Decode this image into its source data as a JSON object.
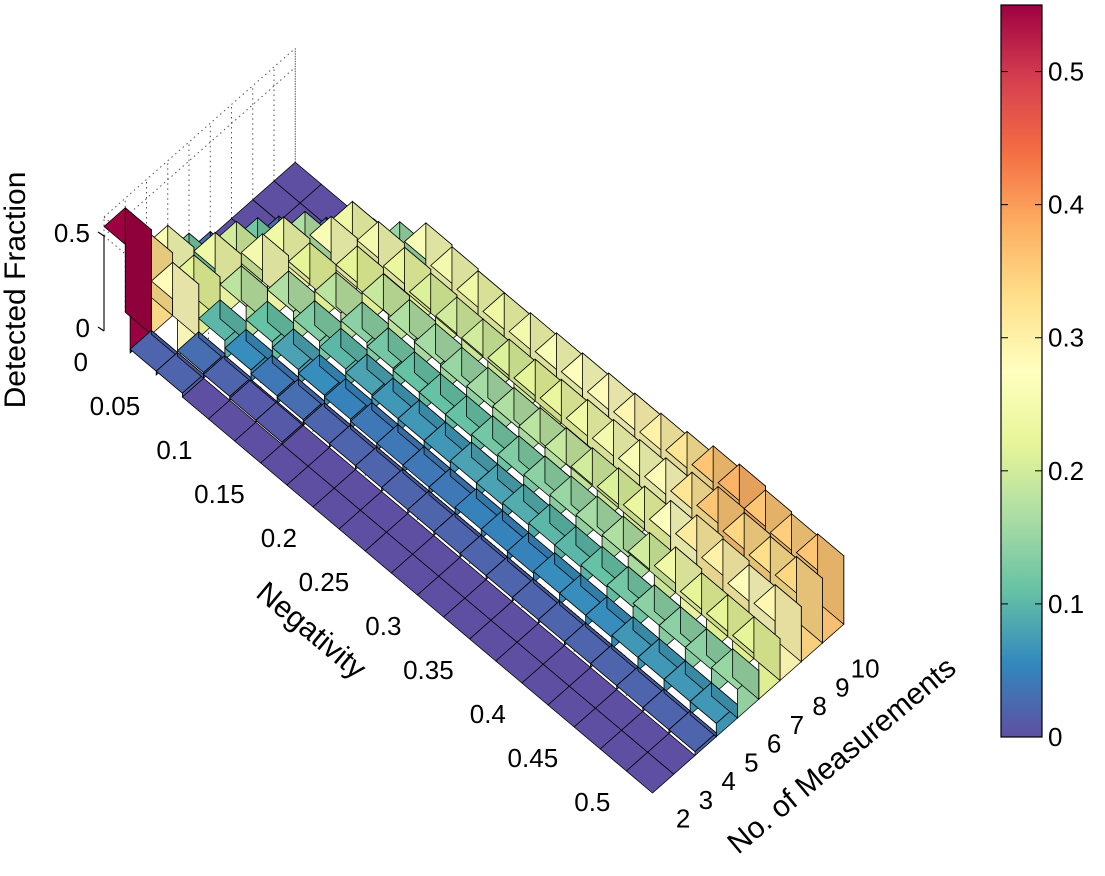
{
  "chart_data": {
    "type": "bar3d",
    "title": "",
    "xlabel": "No. of Measurements",
    "ylabel": "Negativity",
    "zlabel": "Detected Fraction",
    "x_ticks": [
      "2",
      "3",
      "4",
      "5",
      "6",
      "7",
      "8",
      "9",
      "10"
    ],
    "y_ticks": [
      "0",
      "0.05",
      "0.1",
      "0.15",
      "0.2",
      "0.25",
      "0.3",
      "0.35",
      "0.4",
      "0.45",
      "0.5"
    ],
    "z_ticks": [
      "0",
      "0.5"
    ],
    "zlim": [
      0,
      0.6
    ],
    "colormap": "spectral",
    "colorbar": {
      "ticks": [
        "0",
        "0.1",
        "0.2",
        "0.3",
        "0.4",
        "0.5"
      ],
      "range": [
        0,
        0.55
      ],
      "position": "right"
    },
    "grid": true,
    "x": [
      2,
      3,
      4,
      5,
      6,
      7,
      8,
      9,
      10
    ],
    "y": [
      0,
      0.025,
      0.05,
      0.075,
      0.1,
      0.125,
      0.15,
      0.175,
      0.2,
      0.225,
      0.25,
      0.275,
      0.3,
      0.325,
      0.35,
      0.375,
      0.4,
      0.425,
      0.45,
      0.475,
      0.5
    ],
    "values": [
      [
        0.55,
        0.33,
        0.26,
        0.12,
        0.03,
        0.0,
        0.0,
        0.0,
        0.0
      ],
      [
        0.02,
        0.28,
        0.22,
        0.24,
        0.2,
        0.12,
        0.03,
        0.0,
        0.0
      ],
      [
        0.02,
        0.03,
        0.1,
        0.18,
        0.25,
        0.24,
        0.17,
        0.04,
        0.0
      ],
      [
        0.0,
        0.02,
        0.06,
        0.11,
        0.17,
        0.22,
        0.26,
        0.24,
        0.05
      ],
      [
        0.0,
        0.01,
        0.04,
        0.08,
        0.13,
        0.18,
        0.22,
        0.25,
        0.15
      ],
      [
        0.0,
        0.01,
        0.03,
        0.06,
        0.1,
        0.14,
        0.19,
        0.23,
        0.26
      ],
      [
        0.0,
        0.0,
        0.02,
        0.05,
        0.08,
        0.12,
        0.17,
        0.21,
        0.25
      ],
      [
        0.0,
        0.0,
        0.02,
        0.04,
        0.07,
        0.11,
        0.16,
        0.2,
        0.24
      ],
      [
        0.0,
        0.0,
        0.02,
        0.04,
        0.07,
        0.11,
        0.15,
        0.2,
        0.24
      ],
      [
        0.0,
        0.0,
        0.02,
        0.04,
        0.07,
        0.11,
        0.16,
        0.21,
        0.25
      ],
      [
        0.0,
        0.0,
        0.02,
        0.04,
        0.08,
        0.12,
        0.17,
        0.22,
        0.26
      ],
      [
        0.0,
        0.0,
        0.02,
        0.05,
        0.08,
        0.13,
        0.18,
        0.23,
        0.27
      ],
      [
        0.0,
        0.0,
        0.02,
        0.05,
        0.09,
        0.14,
        0.19,
        0.24,
        0.28
      ],
      [
        0.0,
        0.0,
        0.02,
        0.05,
        0.1,
        0.15,
        0.2,
        0.25,
        0.29
      ],
      [
        0.0,
        0.0,
        0.02,
        0.06,
        0.1,
        0.16,
        0.21,
        0.26,
        0.3
      ],
      [
        0.0,
        0.0,
        0.02,
        0.06,
        0.11,
        0.17,
        0.23,
        0.28,
        0.32
      ],
      [
        0.0,
        0.0,
        0.02,
        0.06,
        0.12,
        0.2,
        0.27,
        0.32,
        0.36
      ],
      [
        0.0,
        0.0,
        0.02,
        0.07,
        0.14,
        0.24,
        0.31,
        0.36,
        0.38
      ],
      [
        0.0,
        0.0,
        0.02,
        0.07,
        0.14,
        0.22,
        0.3,
        0.34,
        0.36
      ],
      [
        0.0,
        0.0,
        0.02,
        0.07,
        0.14,
        0.22,
        0.28,
        0.33,
        0.35
      ],
      [
        0.0,
        0.0,
        0.02,
        0.07,
        0.15,
        0.22,
        0.29,
        0.34,
        0.36
      ]
    ]
  }
}
